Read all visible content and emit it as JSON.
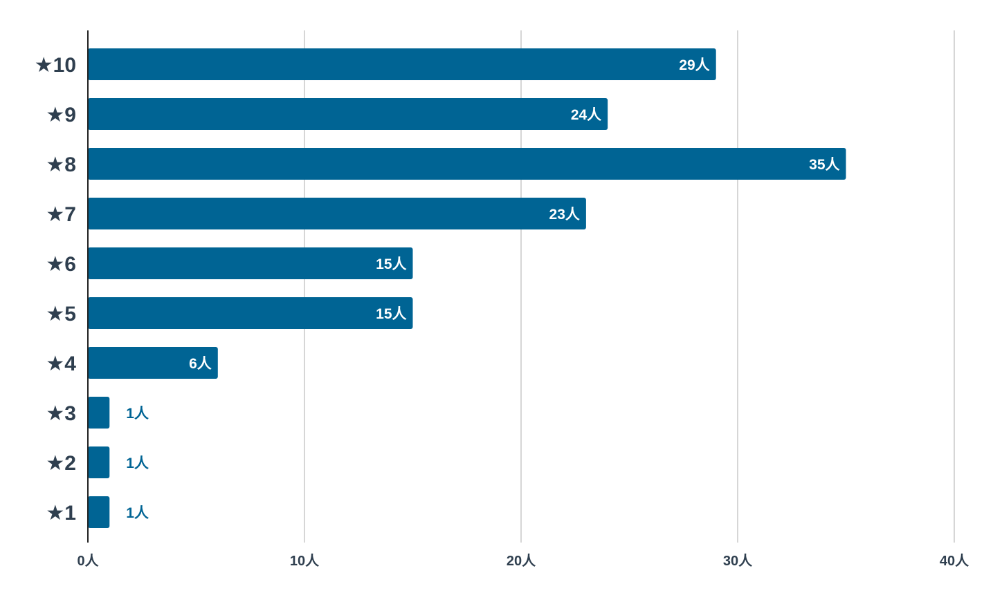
{
  "chart_data": {
    "type": "bar",
    "orientation": "horizontal",
    "categories": [
      "★10",
      "★9",
      "★8",
      "★7",
      "★6",
      "★5",
      "★4",
      "★3",
      "★2",
      "★1"
    ],
    "values": [
      29,
      24,
      35,
      23,
      15,
      15,
      6,
      1,
      1,
      1
    ],
    "value_labels": [
      "29人",
      "24人",
      "35人",
      "23人",
      "15人",
      "15人",
      "6人",
      "1人",
      "1人",
      "1人"
    ],
    "xlim": [
      0,
      40
    ],
    "x_ticks": [
      0,
      10,
      20,
      30,
      40
    ],
    "x_tick_labels": [
      "0人",
      "10人",
      "20人",
      "30人",
      "40人"
    ],
    "grid": true,
    "title": "",
    "xlabel": "",
    "ylabel": "",
    "colors": {
      "bar": "#006494",
      "label_inside": "#ffffff",
      "label_outside": "#006494",
      "grid": "#c8c8c8",
      "axis": "#222222",
      "text": "#2f3f4f"
    }
  }
}
